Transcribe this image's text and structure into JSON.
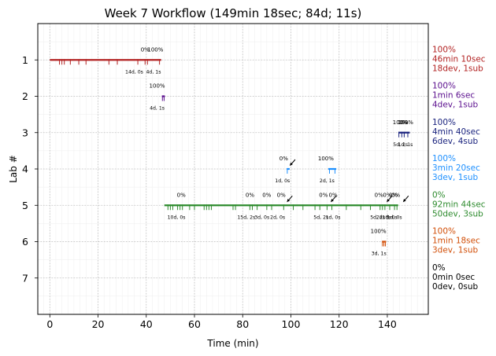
{
  "chart_data": {
    "type": "timeline",
    "title": "Week 7 Workflow (149min 18sec; 84d; 11s)",
    "xlabel": "Time (min)",
    "ylabel": "Lab #",
    "xlim": [
      -5,
      157
    ],
    "ylim": [
      8,
      0
    ],
    "x_ticks": [
      0,
      20,
      40,
      60,
      80,
      100,
      120,
      140
    ],
    "y_ticks": [
      1,
      2,
      3,
      4,
      5,
      6,
      7
    ],
    "grid": true,
    "labs": [
      {
        "lab": 1,
        "color": "#b22222",
        "bar": [
          0,
          46.2
        ],
        "ticks": [
          4,
          5,
          6,
          8.5,
          12,
          15,
          24.5,
          28,
          36.5,
          39.5,
          40.5,
          45.5
        ],
        "percent_labels": [
          {
            "x": 39.5,
            "text": "0%"
          },
          {
            "x": 43.8,
            "text": "100%"
          }
        ],
        "small_labels": [
          {
            "x": 35,
            "text": "14d, 0s"
          },
          {
            "x": 43,
            "text": "4d, 1s"
          }
        ],
        "side": [
          "100%",
          "46min 10sec",
          "18dev, 1sub"
        ]
      },
      {
        "lab": 2,
        "color": "#5b0f8e",
        "bar": [
          46.5,
          47.7
        ],
        "ticks": [
          46.7,
          47.4
        ],
        "percent_labels": [
          {
            "x": 44.5,
            "text": "100%"
          }
        ],
        "small_labels": [
          {
            "x": 44.5,
            "text": "4d, 1s"
          }
        ],
        "side": [
          "100%",
          "1min 6sec",
          "4dev, 1sub"
        ]
      },
      {
        "lab": 3,
        "color": "#1a237e",
        "bar": [
          144.6,
          149.3
        ],
        "ticks": [
          144.8,
          146,
          147,
          148.5
        ],
        "percent_labels": [
          {
            "x": 145.5,
            "text": "100%"
          },
          {
            "x": 146.5,
            "text": "0%"
          },
          {
            "x": 147.5,
            "text": "100%"
          }
        ],
        "small_labels": [
          {
            "x": 145.5,
            "text": "5d, 2s"
          },
          {
            "x": 147.5,
            "text": "1d, 1s"
          }
        ],
        "side": [
          "100%",
          "4min 40sec",
          "6dev, 4sub"
        ]
      },
      {
        "lab": 4,
        "color": "#1e90ff",
        "bar_segments": [
          [
            98.3,
            99.5
          ],
          [
            115.5,
            118.8
          ]
        ],
        "ticks": [
          98.5,
          116,
          118.3
        ],
        "percent_labels": [
          {
            "x": 97,
            "text": "0%"
          },
          {
            "x": 114.5,
            "text": "100%"
          }
        ],
        "small_labels": [
          {
            "x": 96.5,
            "text": "1d, 0s"
          },
          {
            "x": 115,
            "text": "2d, 1s"
          }
        ],
        "arrows": [
          {
            "x": 99.5
          }
        ],
        "side": [
          "100%",
          "3min 20sec",
          "3dev, 1sub"
        ]
      },
      {
        "lab": 5,
        "color": "#2e8b2e",
        "bar": [
          47.5,
          144.5
        ],
        "ticks": [
          49,
          50,
          51,
          53,
          54,
          55,
          58,
          60,
          64,
          65,
          66,
          67,
          76,
          77,
          83,
          84,
          86,
          90,
          92,
          97,
          101,
          105,
          110,
          112,
          115,
          117,
          123,
          129,
          133,
          137,
          138,
          139,
          141,
          143,
          144
        ],
        "percent_labels": [
          {
            "x": 54.5,
            "text": "0%"
          },
          {
            "x": 83,
            "text": "0%"
          },
          {
            "x": 90,
            "text": "0%"
          },
          {
            "x": 96,
            "text": "0%"
          },
          {
            "x": 113.5,
            "text": "0%"
          },
          {
            "x": 117.5,
            "text": "0%"
          },
          {
            "x": 136.5,
            "text": "0%"
          },
          {
            "x": 140,
            "text": "0%"
          },
          {
            "x": 142.5,
            "text": "0%"
          },
          {
            "x": 143.5,
            "text": "0%"
          }
        ],
        "small_labels": [
          {
            "x": 52.5,
            "text": "10d, 0s"
          },
          {
            "x": 81.5,
            "text": "15d, 2s"
          },
          {
            "x": 88,
            "text": "3d, 0s"
          },
          {
            "x": 94.5,
            "text": "2d, 0s"
          },
          {
            "x": 112.5,
            "text": "5d, 2s"
          },
          {
            "x": 117.5,
            "text": "1d, 0s"
          },
          {
            "x": 136,
            "text": "5d, 2s"
          },
          {
            "x": 138.5,
            "text": "2d, 0s"
          },
          {
            "x": 141,
            "text": "1d, 0s"
          },
          {
            "x": 143,
            "text": "1d, 0s"
          }
        ],
        "arrows": [
          {
            "x": 98.3
          },
          {
            "x": 116.5
          },
          {
            "x": 139.7
          },
          {
            "x": 146.5
          }
        ],
        "side": [
          "0%",
          "92min 44sec",
          "50dev, 3sub"
        ]
      },
      {
        "lab": 6,
        "color": "#d2500a",
        "bar": [
          137.8,
          139.5
        ],
        "ticks": [
          138,
          138.6,
          139.2
        ],
        "percent_labels": [
          {
            "x": 136.3,
            "text": "100%"
          }
        ],
        "small_labels": [
          {
            "x": 136.5,
            "text": "3d, 1s"
          }
        ],
        "side": [
          "100%",
          "1min 18sec",
          "3dev, 1sub"
        ]
      },
      {
        "lab": 7,
        "color": "#000000",
        "side": [
          "0%",
          "0min 0sec",
          "0dev, 0sub"
        ]
      }
    ]
  }
}
